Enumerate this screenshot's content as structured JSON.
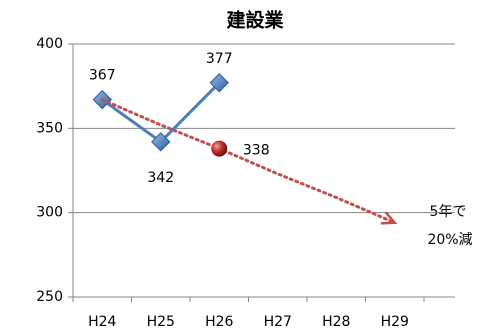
{
  "chart_data": {
    "type": "line",
    "title": "建設業",
    "categories": [
      "H24",
      "H25",
      "H26",
      "H27",
      "H28",
      "H29"
    ],
    "series": [
      {
        "color": "#4a7ebb",
        "marker": "diamond",
        "values": [
          367,
          342,
          377,
          null,
          null,
          null
        ],
        "point_labels": [
          true,
          true,
          true,
          false,
          false,
          false
        ]
      },
      {
        "color": "#c0504d",
        "dashed": true,
        "arrow": true,
        "marker": "ball",
        "values": [
          367,
          352,
          338,
          323,
          309,
          294
        ],
        "point_labels": [
          false,
          false,
          true,
          false,
          false,
          false
        ]
      }
    ],
    "ylim": [
      250,
      400
    ],
    "yticks": [
      250,
      300,
      350,
      400
    ],
    "grid": true,
    "annotations": [
      "5年で",
      "20%減"
    ]
  }
}
